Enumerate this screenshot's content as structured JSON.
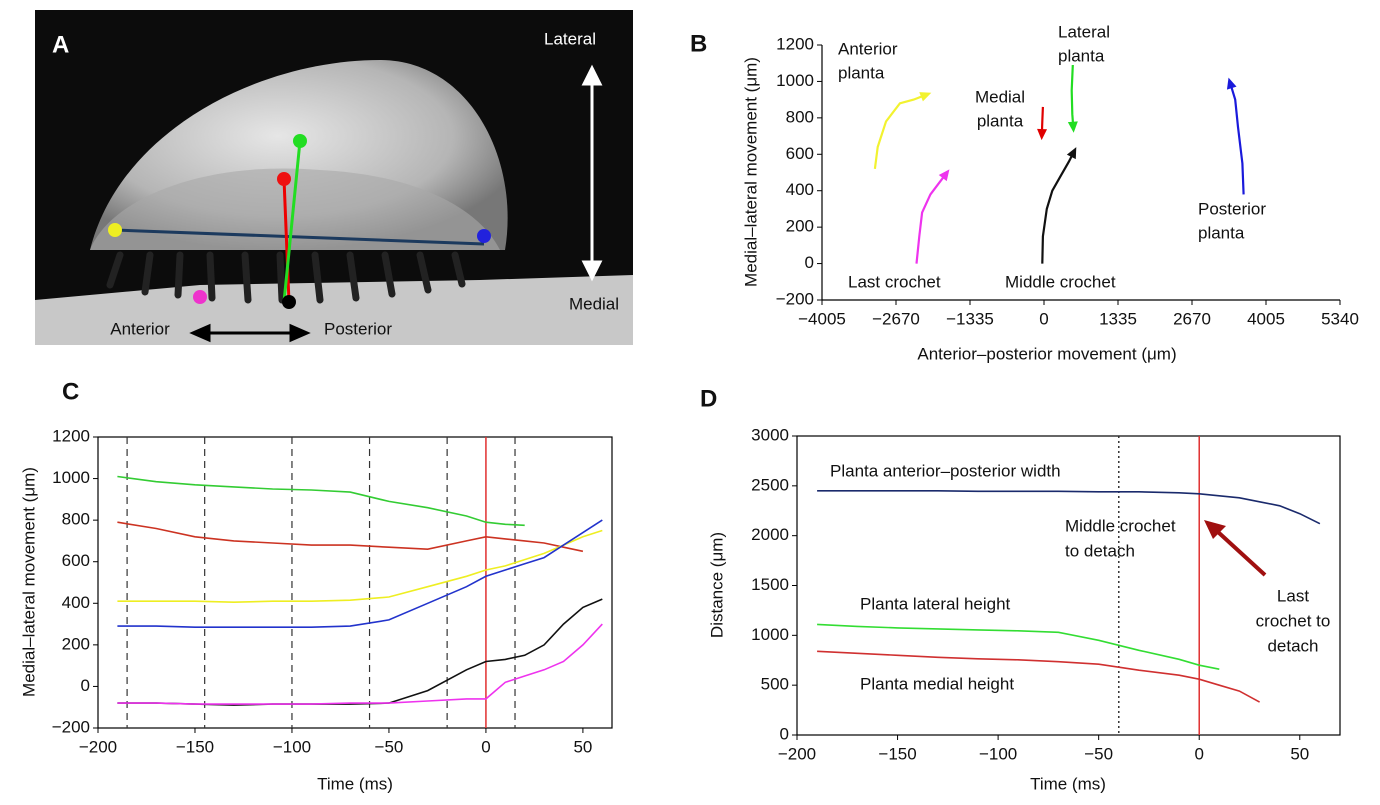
{
  "photo": {
    "panel": "A",
    "lateral": "Lateral",
    "medial": "Medial",
    "anterior": "Anterior",
    "posterior": "Posterior"
  },
  "chart_data": [
    {
      "type": "line",
      "panel": "B",
      "xlabel": "Anterior–posterior movement (μm)",
      "ylabel": "Medial–lateral movement (μm)",
      "xlim": [
        -4005,
        5340
      ],
      "ylim": [
        -200,
        1200
      ],
      "xticks": [
        {
          "value": -4005,
          "label": "−4005"
        },
        {
          "value": -2670,
          "label": "−2670"
        },
        {
          "value": -1335,
          "label": "−1335"
        },
        0,
        1335,
        2670,
        4005,
        5340
      ],
      "yticks": [
        {
          "value": -200,
          "label": "−200"
        },
        0,
        200,
        400,
        600,
        800,
        1000,
        1200
      ],
      "series": [
        {
          "name": [
            "Anterior",
            "planta"
          ],
          "color": "#f2f230",
          "x": [
            -3050,
            -3000,
            -2850,
            -2600,
            -2350,
            -2100
          ],
          "values": [
            520,
            640,
            780,
            880,
            900,
            930
          ]
        },
        {
          "name": [
            "Medial",
            "planta"
          ],
          "color": "#e00000",
          "x": [
            -20,
            -30,
            -40
          ],
          "values": [
            860,
            780,
            700
          ]
        },
        {
          "name": [
            "Lateral",
            "planta"
          ],
          "color": "#22dd22",
          "x": [
            520,
            500,
            510,
            530
          ],
          "values": [
            1090,
            950,
            820,
            740
          ]
        },
        {
          "name": [
            "Posterior",
            "planta"
          ],
          "color": "#1a1adb",
          "x": [
            3600,
            3580,
            3500,
            3450,
            3350
          ],
          "values": [
            380,
            550,
            750,
            900,
            1000
          ]
        },
        {
          "name": [
            "Last crochet"
          ],
          "color": "#ee33ee",
          "x": [
            -2300,
            -2250,
            -2200,
            -2050,
            -1900,
            -1750
          ],
          "values": [
            0,
            150,
            280,
            380,
            440,
            500
          ]
        },
        {
          "name": [
            "Middle crochet"
          ],
          "color": "#111111",
          "x": [
            -30,
            -20,
            50,
            150,
            300,
            450,
            550
          ],
          "values": [
            0,
            150,
            300,
            400,
            480,
            560,
            620
          ]
        }
      ]
    },
    {
      "type": "line",
      "panel": "C",
      "xlabel": "Time (ms)",
      "ylabel": "Medial–lateral movement (μm)",
      "xlim": [
        -200,
        65
      ],
      "ylim": [
        -200,
        1200
      ],
      "xticks": [
        {
          "value": -200,
          "label": "−200"
        },
        {
          "value": -150,
          "label": "−150"
        },
        {
          "value": -100,
          "label": "−100"
        },
        {
          "value": -50,
          "label": "−50"
        },
        0,
        50
      ],
      "yticks": [
        {
          "value": -200,
          "label": "−200"
        },
        0,
        200,
        400,
        600,
        800,
        1000,
        1200
      ],
      "dashed_lines": [
        -185,
        -145,
        -100,
        -60,
        -20,
        15
      ],
      "red_line": 0,
      "x": [
        -190,
        -170,
        -150,
        -130,
        -110,
        -90,
        -70,
        -50,
        -30,
        -10,
        0,
        10,
        20,
        30,
        40,
        50,
        60
      ],
      "series": [
        {
          "color": "#33cc33",
          "values": [
            1010,
            985,
            970,
            960,
            950,
            945,
            935,
            890,
            860,
            820,
            790,
            780,
            775,
            null,
            null,
            null,
            null
          ]
        },
        {
          "color": "#cc3322",
          "values": [
            790,
            760,
            720,
            700,
            690,
            680,
            680,
            670,
            660,
            700,
            720,
            710,
            700,
            690,
            670,
            650,
            null
          ]
        },
        {
          "color": "#eeee22",
          "values": [
            410,
            410,
            410,
            405,
            410,
            410,
            415,
            430,
            480,
            530,
            560,
            580,
            610,
            640,
            680,
            720,
            750
          ]
        },
        {
          "color": "#2233cc",
          "values": [
            290,
            290,
            285,
            285,
            285,
            285,
            290,
            320,
            400,
            480,
            530,
            560,
            590,
            620,
            680,
            740,
            800
          ]
        },
        {
          "color": "#111111",
          "values": [
            -80,
            -80,
            -85,
            -90,
            -85,
            -85,
            -85,
            -80,
            -20,
            80,
            120,
            130,
            150,
            200,
            300,
            380,
            420
          ]
        },
        {
          "color": "#ee33ee",
          "values": [
            -80,
            -80,
            -85,
            -85,
            -85,
            -85,
            -80,
            -80,
            -70,
            -60,
            -60,
            20,
            50,
            80,
            120,
            200,
            300
          ]
        }
      ]
    },
    {
      "type": "line",
      "panel": "D",
      "xlabel": "Time (ms)",
      "ylabel": "Distance (μm)",
      "xlim": [
        -200,
        70
      ],
      "ylim": [
        0,
        3000
      ],
      "xticks": [
        {
          "value": -200,
          "label": "−200"
        },
        {
          "value": -150,
          "label": "−150"
        },
        {
          "value": -100,
          "label": "−100"
        },
        {
          "value": -50,
          "label": "−50"
        },
        0,
        50
      ],
      "yticks": [
        0,
        500,
        1000,
        1500,
        2000,
        2500,
        3000
      ],
      "dotted_lines": [
        -40
      ],
      "red_line": 0,
      "x": [
        -190,
        -170,
        -150,
        -130,
        -110,
        -90,
        -70,
        -50,
        -30,
        -10,
        0,
        10,
        20,
        30,
        40,
        50,
        60
      ],
      "series": [
        {
          "name": [
            "Planta anterior–posterior width"
          ],
          "color": "#1a2a6c",
          "values": [
            2450,
            2450,
            2450,
            2450,
            2445,
            2445,
            2445,
            2440,
            2440,
            2430,
            2420,
            2400,
            2380,
            2340,
            2300,
            2220,
            2120
          ]
        },
        {
          "name": [
            "Planta lateral height"
          ],
          "color": "#33dd33",
          "values": [
            1110,
            1090,
            1075,
            1065,
            1055,
            1045,
            1030,
            950,
            850,
            760,
            700,
            660,
            null,
            null,
            null,
            null,
            null
          ]
        },
        {
          "name": [
            "Planta medial height"
          ],
          "color": "#d03030",
          "values": [
            840,
            820,
            800,
            780,
            765,
            755,
            735,
            710,
            650,
            600,
            560,
            500,
            440,
            330,
            null,
            null,
            null
          ]
        }
      ],
      "annotations": [
        [
          "Middle crochet",
          "to detach"
        ],
        [
          "Last",
          "crochet to",
          "detach"
        ]
      ]
    }
  ]
}
